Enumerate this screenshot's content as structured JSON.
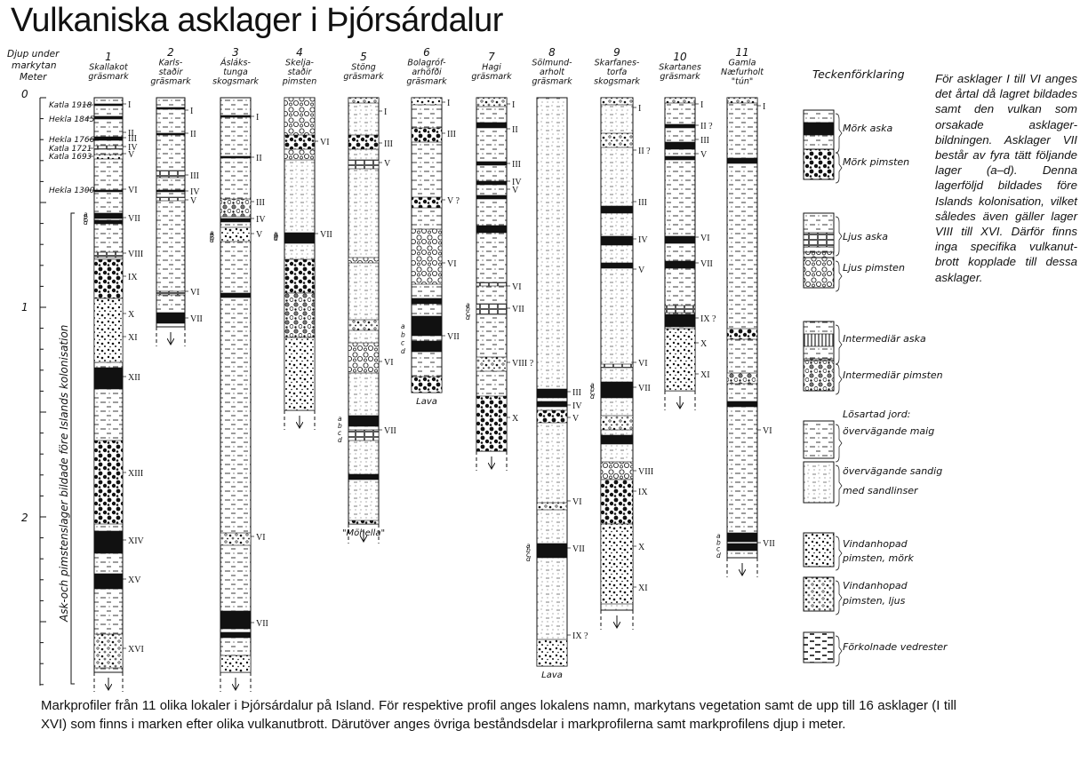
{
  "title": "Vulkaniska asklager i Þjórsárdalur",
  "note": "För asklager I till VI anges det årtal då lagret bildades samt den vulkan som orsakade asklager-bildningen. Asklager VII består av fyra tätt följande lager (a–d). Denna lagerföljd bildades före Islands kolonisation, vilket således även gäller lager VIII till XVI. Därför finns inga specifika vulkanut-brott kopplade till dessa asklager.",
  "caption": "Markprofiler från 11 olika lokaler i Þjórsárdalur på Island. För respektive profil anges lokalens namn, markytans vegetation samt de upp till 16 asklager (I till XVI) som finns i marken efter olika vulkanutbrott. Därutöver anges övriga beståndsdelar i markprofilerna samt markprofilens djup i meter.",
  "axis": {
    "label_lines": [
      "Djup under",
      "markytan",
      "Meter"
    ],
    "ticks": [
      "0",
      "1",
      "2"
    ]
  },
  "eruptions": [
    "Katla 1918",
    "Hekla 1845",
    "Hekla 1766",
    "Katla 1721",
    "Katla 1693",
    "Hekla 1300"
  ],
  "side_label": "Ask-och pimstenslager bildade före Islands kolonisation",
  "profiles": [
    {
      "num": "1",
      "name": [
        "Skallakot"
      ],
      "veg": "gräsmark",
      "bottom_label": ""
    },
    {
      "num": "2",
      "name": [
        "Karls-",
        "staðir"
      ],
      "veg": "gräsmark",
      "bottom_label": ""
    },
    {
      "num": "3",
      "name": [
        "Ásláks-",
        "tunga"
      ],
      "veg": "skogsmark",
      "bottom_label": ""
    },
    {
      "num": "4",
      "name": [
        "Skelja-",
        "staðir"
      ],
      "veg": "pimsten",
      "bottom_label": ""
    },
    {
      "num": "5",
      "name": [
        "Stöng"
      ],
      "veg": "gräsmark",
      "bottom_label": "\"Möhella\""
    },
    {
      "num": "6",
      "name": [
        "Bolagróf-",
        "arhöfði"
      ],
      "veg": "gräsmark",
      "bottom_label": "Lava"
    },
    {
      "num": "7",
      "name": [
        "Hagi"
      ],
      "veg": "gräsmark",
      "bottom_label": ""
    },
    {
      "num": "8",
      "name": [
        "Sölmund-",
        "arholt"
      ],
      "veg": "gräsmark",
      "bottom_label": "Lava"
    },
    {
      "num": "9",
      "name": [
        "Skarfanes-",
        "torfa"
      ],
      "veg": "skogsmark",
      "bottom_label": ""
    },
    {
      "num": "10",
      "name": [
        "Skartanes"
      ],
      "veg": "gräsmark",
      "bottom_label": ""
    },
    {
      "num": "11",
      "name": [
        "Gamla",
        "Næfurholt"
      ],
      "veg": "\"tún\"",
      "bottom_label": ""
    }
  ],
  "layer_labels": {
    "1": [
      "I",
      "II",
      "III",
      "IV",
      "V",
      "VI",
      "VII",
      "VIII",
      "IX",
      "X",
      "XI",
      "XII",
      "XIII",
      "XIV",
      "XV",
      "XVI"
    ],
    "2": [
      "I",
      "II",
      "III",
      "IV",
      "V",
      "VI",
      "VII"
    ],
    "3": [
      "I",
      "II",
      "III",
      "IV",
      "V",
      "VI",
      "VII"
    ],
    "4": [
      "VI",
      "VII"
    ],
    "5": [
      "I",
      "III",
      "V",
      "VI",
      "VII"
    ],
    "6": [
      "I",
      "III",
      "V ?",
      "VI",
      "VII"
    ],
    "7": [
      "I",
      "II",
      "III",
      "IV",
      "V",
      "VI",
      "VII",
      "VIII ?",
      "X"
    ],
    "8": [
      "III",
      "IV",
      "V",
      "VI",
      "VII",
      "IX ?"
    ],
    "9": [
      "I",
      "II ?",
      "III",
      "IV",
      "V",
      "VI",
      "VII",
      "VIII",
      "IX",
      "X",
      "XI"
    ],
    "10": [
      "I",
      "II ?",
      "III",
      "V",
      "VI",
      "VII",
      "IX ?",
      "X",
      "XI"
    ],
    "11": [
      "I",
      "VI",
      "VII"
    ]
  },
  "sublayer_letters": [
    "a",
    "b",
    "c",
    "d"
  ],
  "legend": {
    "title": "Teckenförklaring",
    "items": [
      {
        "label": [
          "Mörk aska"
        ]
      },
      {
        "label": [
          "Mörk pimsten"
        ]
      },
      {
        "label": [
          "Ljus aska"
        ]
      },
      {
        "label": [
          "Ljus pimsten"
        ]
      },
      {
        "label": [
          "Intermediär aska"
        ]
      },
      {
        "label": [
          "Intermediär pimsten"
        ]
      },
      {
        "label": [
          "Lösartad jord:",
          "övervägande maig"
        ]
      },
      {
        "label": [
          "övervägande sandig",
          "med sandlinser"
        ]
      },
      {
        "label": [
          "Vindanhopad",
          "pimsten, mörk"
        ]
      },
      {
        "label": [
          "Vindanhopad",
          "pimsten, ljus"
        ]
      },
      {
        "label": [
          "Förkolnade vedrester"
        ]
      }
    ]
  }
}
